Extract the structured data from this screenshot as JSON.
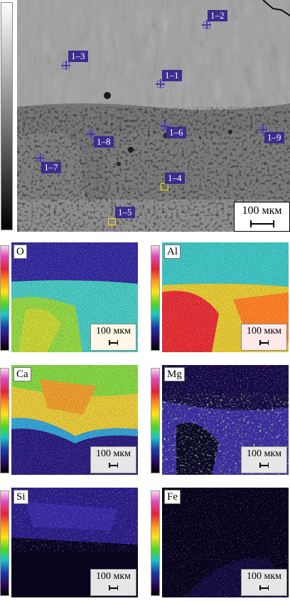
{
  "sem": {
    "points": [
      {
        "id": "p12",
        "label": "1–2"
      },
      {
        "id": "p13",
        "label": "1–3"
      },
      {
        "id": "p11",
        "label": "1–1"
      },
      {
        "id": "p16",
        "label": "1–6"
      },
      {
        "id": "p18",
        "label": "1–8"
      },
      {
        "id": "p19",
        "label": "1–9"
      },
      {
        "id": "p17",
        "label": "1–7"
      },
      {
        "id": "p14",
        "label": "1–4"
      },
      {
        "id": "p15",
        "label": "1–5"
      }
    ],
    "scale_label": "100 мкм"
  },
  "maps": [
    {
      "element": "O",
      "scale_label": "100 мкм"
    },
    {
      "element": "Al",
      "scale_label": "100 мкм"
    },
    {
      "element": "Ca",
      "scale_label": "100 мкм"
    },
    {
      "element": "Mg",
      "scale_label": "100 мкм"
    },
    {
      "element": "Si",
      "scale_label": "100 мкм"
    },
    {
      "element": "Fe",
      "scale_label": "100 мкм"
    }
  ],
  "colors": {
    "label_bg": "#3c2d8c",
    "marker_stroke": "#4b3a9a",
    "box_yellow": "#ffe600"
  }
}
